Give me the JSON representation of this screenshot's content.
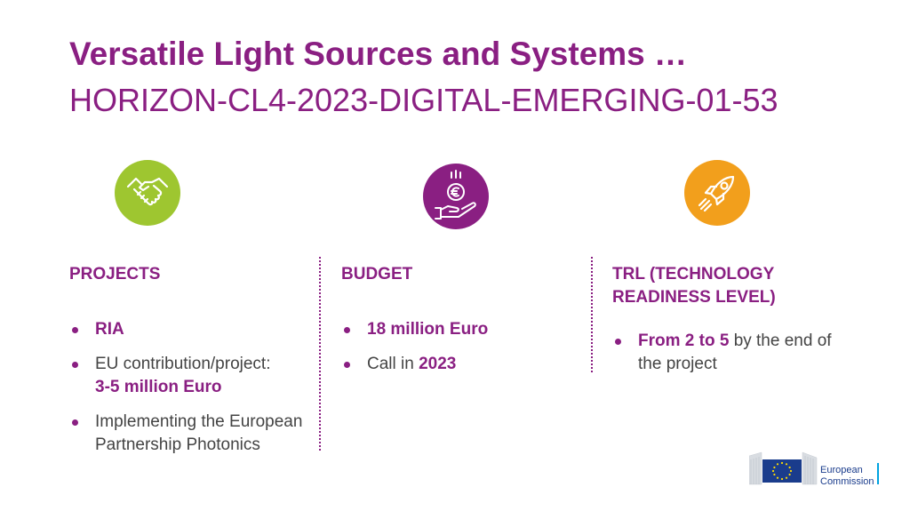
{
  "title": "Versatile Light Sources and Systems …",
  "subtitle": "HORIZON-CL4-2023-DIGITAL-EMERGING-01-53",
  "colors": {
    "accent": "#8a1f82",
    "green": "#9ec630",
    "purple": "#8a1f82",
    "orange": "#f29f1c",
    "text": "#444444"
  },
  "columns": {
    "projects": {
      "icon": "handshake-icon",
      "heading": "PROJECTS",
      "b1": {
        "strong": "RIA"
      },
      "b2": {
        "text": "EU contribution/project:",
        "strong": "3-5 million Euro"
      },
      "b3": {
        "text": "Implementing the European Partnership Photonics"
      }
    },
    "budget": {
      "icon": "euro-coin-hand-icon",
      "heading": "BUDGET",
      "b1": {
        "strong": "18 million Euro"
      },
      "b2": {
        "text": "Call in",
        "strong": "2023"
      }
    },
    "trl": {
      "icon": "rocket-icon",
      "heading": "TRL (TECHNOLOGY READINESS LEVEL)",
      "b1": {
        "strong": "From 2 to 5",
        "text": "by the end of the project"
      }
    }
  },
  "logo": {
    "line1": "European",
    "line2": "Commission"
  }
}
